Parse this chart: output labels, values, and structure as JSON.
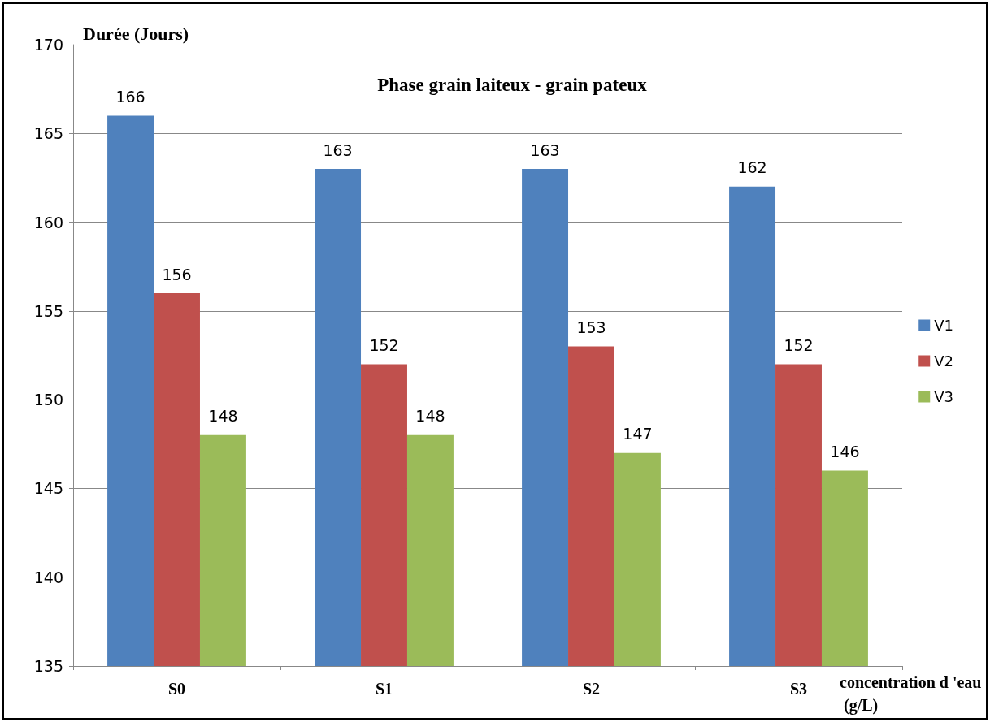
{
  "chart_data": {
    "type": "bar",
    "title": "Phase grain laiteux - grain pateux",
    "ylabel": "Durée (Jours)",
    "xlabel": "concentration d 'eau (g/L)",
    "categories": [
      "S0",
      "S1",
      "S2",
      "S3"
    ],
    "series": [
      {
        "name": "V1",
        "color": "#4f81bd",
        "values": [
          166,
          163,
          163,
          162
        ]
      },
      {
        "name": "V2",
        "color": "#c0504d",
        "values": [
          156,
          152,
          153,
          152
        ]
      },
      {
        "name": "V3",
        "color": "#9bbb59",
        "values": [
          148,
          148,
          147,
          146
        ]
      }
    ],
    "ylim": [
      135,
      170
    ],
    "yticks": [
      135,
      140,
      145,
      150,
      155,
      160,
      165,
      170
    ],
    "grid": "y",
    "legend": "right",
    "data_labels": true
  }
}
